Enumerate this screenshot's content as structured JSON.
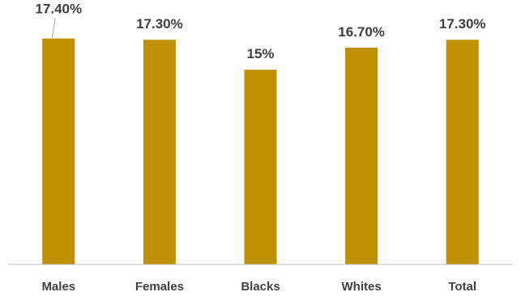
{
  "chart_data": {
    "type": "bar",
    "categories": [
      "Males",
      "Females",
      "Blacks",
      "Whites",
      "Total"
    ],
    "values": [
      17.4,
      17.3,
      15,
      16.7,
      17.3
    ],
    "data_labels": [
      "17.40%",
      "17.30%",
      "15%",
      "16.70%",
      "17.30%"
    ],
    "title": "",
    "xlabel": "",
    "ylabel": "",
    "ylim": [
      0,
      18
    ],
    "grid": false,
    "legend": "none",
    "bar_color": "#BF9000",
    "axis_color": "#BFBFBF",
    "label_color": "#404040"
  }
}
